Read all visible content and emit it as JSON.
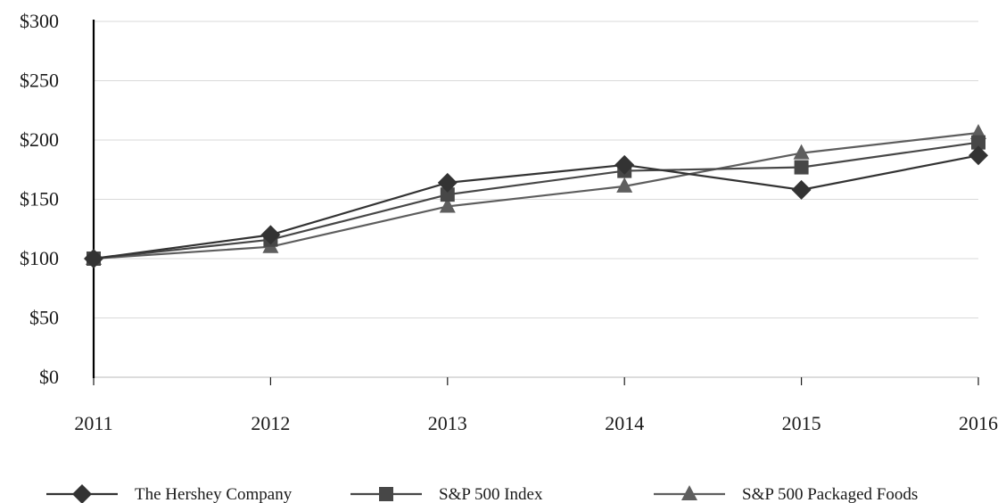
{
  "chart_data": {
    "type": "line",
    "categories": [
      "2011",
      "2012",
      "2013",
      "2014",
      "2015",
      "2016"
    ],
    "ylim": [
      0,
      300
    ],
    "yticks": [
      0,
      50,
      100,
      150,
      200,
      250,
      300
    ],
    "ytick_labels": [
      "$0",
      "$50",
      "$100",
      "$150",
      "$200",
      "$250",
      "$300"
    ],
    "grid": "horizontal",
    "legend_position": "bottom",
    "series": [
      {
        "name": "The Hershey Company",
        "marker": "diamond",
        "color": "#333333",
        "values": [
          100,
          120,
          164,
          179,
          158,
          187
        ]
      },
      {
        "name": "S&P 500 Index",
        "marker": "square",
        "color": "#474747",
        "values": [
          100,
          116,
          154,
          174,
          177,
          198
        ]
      },
      {
        "name": "S&P 500 Packaged Foods",
        "marker": "triangle",
        "color": "#5e5e5e",
        "values": [
          100,
          110,
          144,
          161,
          189,
          206
        ]
      }
    ]
  }
}
